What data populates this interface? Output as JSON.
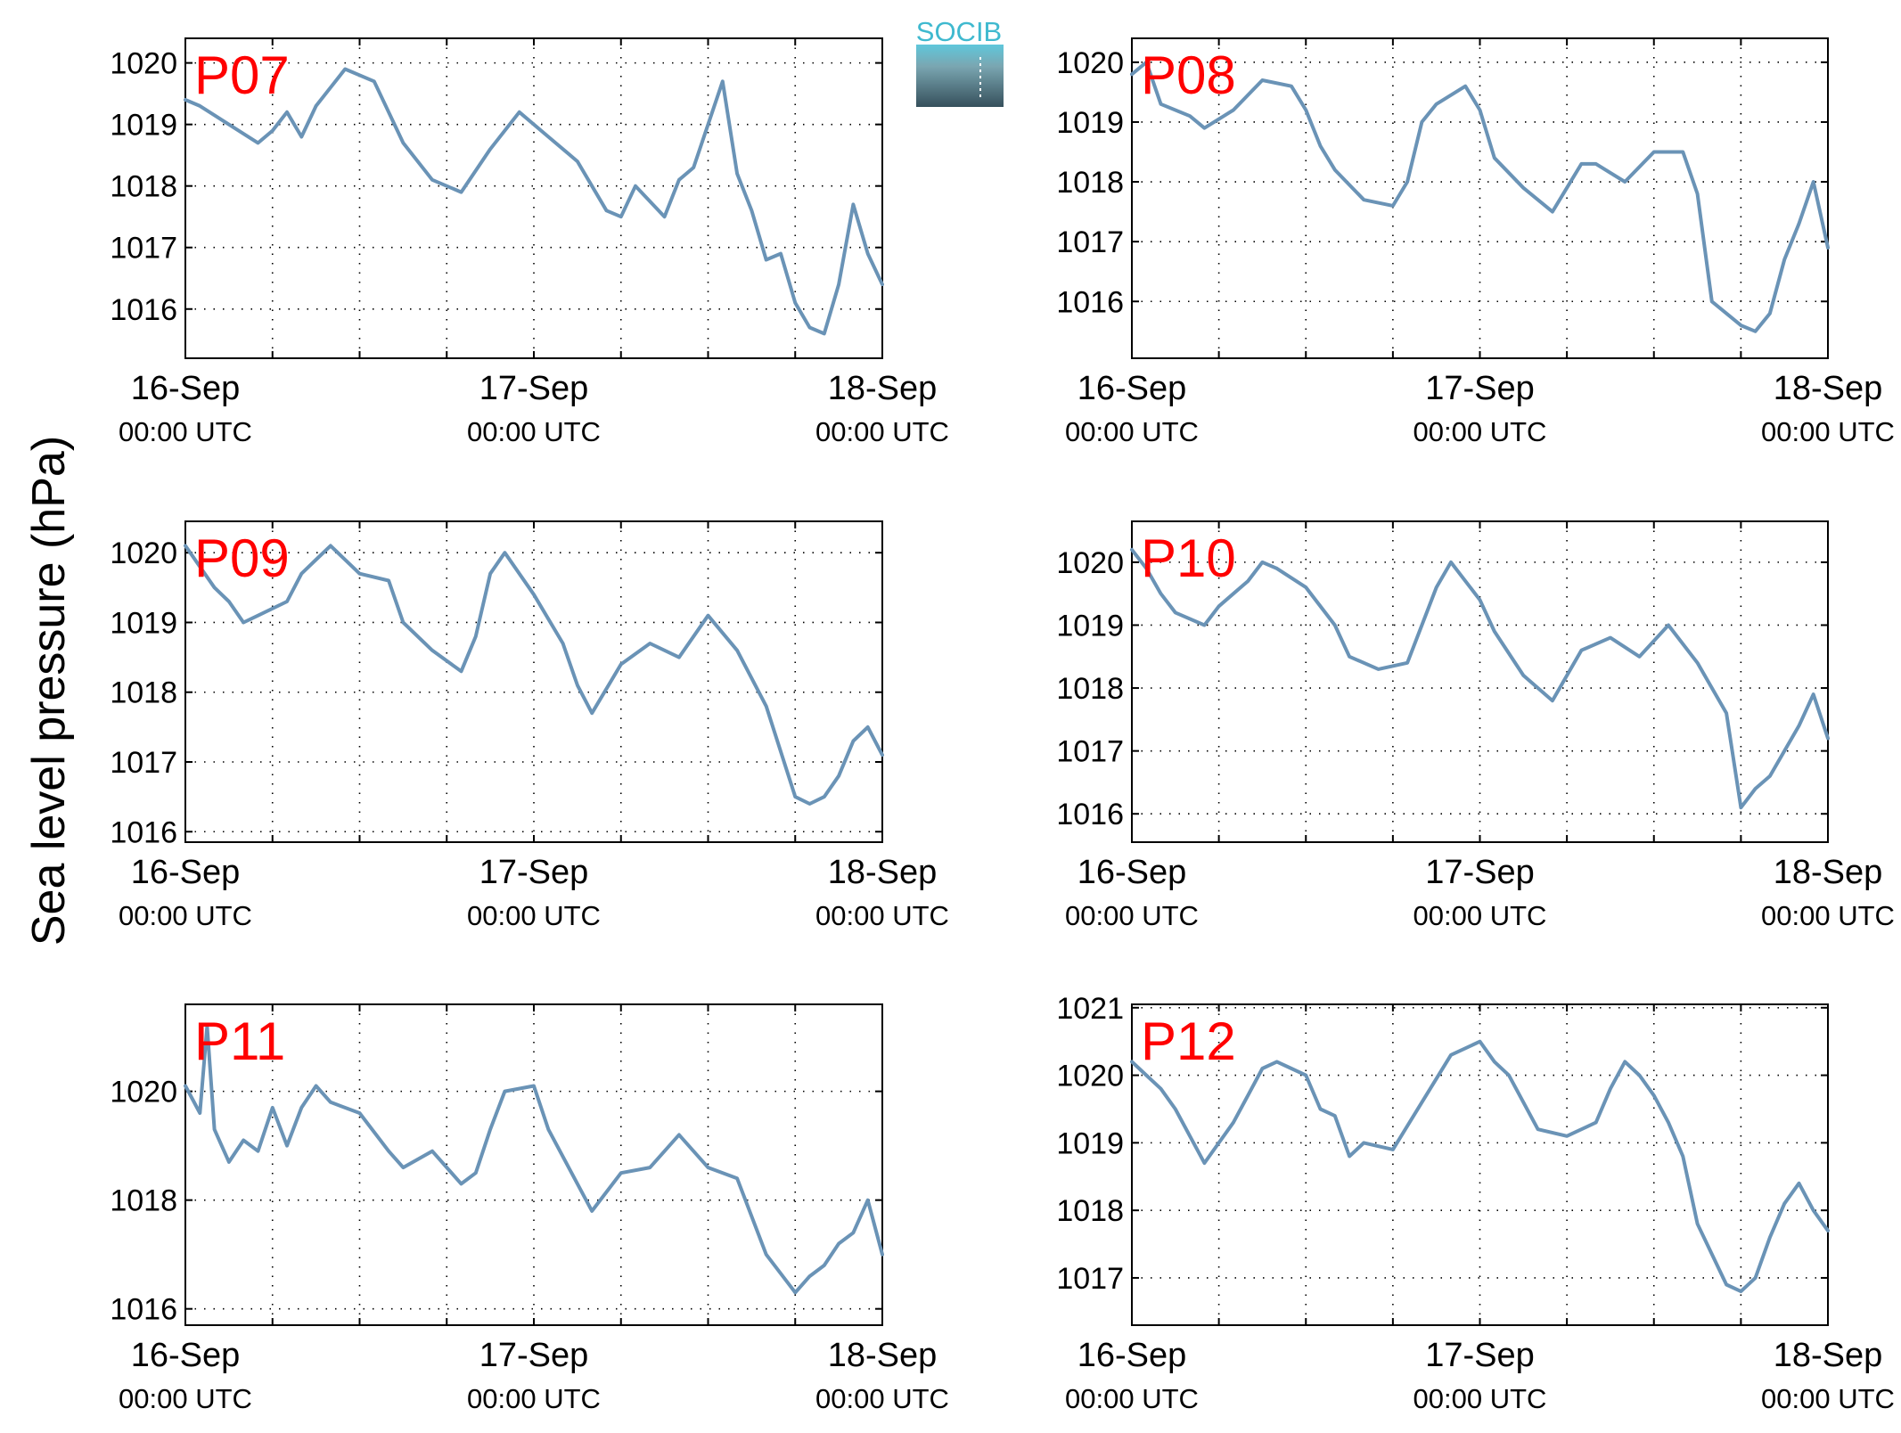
{
  "figure": {
    "ylabel": "Sea level pressure (hPa)",
    "logo_text": "SOCIB",
    "x_tick_dates": [
      "16-Sep",
      "17-Sep",
      "18-Sep"
    ],
    "x_tick_times": [
      "00:00 UTC",
      "00:00 UTC",
      "00:00 UTC"
    ],
    "line_color": "#6a93b6",
    "title_color": "#ff0000"
  },
  "chart_data": [
    {
      "type": "line",
      "title": "P07",
      "x_range": [
        "2015-09-16T00:00",
        "2015-09-18T00:00"
      ],
      "ylim": [
        1015.2,
        1020.4
      ],
      "yticks": [
        1016,
        1017,
        1018,
        1019,
        1020
      ],
      "grid": true,
      "series": [
        {
          "x": [
            "2015-09-16T00:00",
            "2015-09-16T01:00",
            "2015-09-16T03:00",
            "2015-09-16T05:00",
            "2015-09-16T06:00",
            "2015-09-16T07:00",
            "2015-09-16T08:00",
            "2015-09-16T09:00",
            "2015-09-16T10:00",
            "2015-09-16T11:00",
            "2015-09-16T13:00",
            "2015-09-16T14:00",
            "2015-09-16T15:00",
            "2015-09-16T17:00",
            "2015-09-16T19:00",
            "2015-09-16T21:00",
            "2015-09-16T23:00",
            "2015-09-17T01:00",
            "2015-09-17T03:00",
            "2015-09-17T05:00",
            "2015-09-17T06:00",
            "2015-09-17T07:00",
            "2015-09-17T09:00",
            "2015-09-17T10:00",
            "2015-09-17T11:00",
            "2015-09-17T13:00",
            "2015-09-17T14:00",
            "2015-09-17T15:00",
            "2015-09-17T16:00",
            "2015-09-17T17:00",
            "2015-09-17T18:00",
            "2015-09-17T19:00",
            "2015-09-17T20:00",
            "2015-09-17T21:00",
            "2015-09-17T22:00",
            "2015-09-17T23:00",
            "2015-09-18T00:00"
          ],
          "y": [
            1019.4,
            1019.3,
            1019.0,
            1018.7,
            1018.9,
            1019.2,
            1018.8,
            1019.3,
            1019.6,
            1019.9,
            1019.7,
            1019.2,
            1018.7,
            1018.1,
            1017.9,
            1018.6,
            1019.2,
            1018.8,
            1018.4,
            1017.6,
            1017.5,
            1018.0,
            1017.5,
            1018.1,
            1018.3,
            1019.7,
            1018.2,
            1017.6,
            1016.8,
            1016.9,
            1016.1,
            1015.7,
            1015.6,
            1016.4,
            1017.7,
            1016.9,
            1016.4
          ]
        }
      ]
    },
    {
      "type": "line",
      "title": "P08",
      "x_range": [
        "2015-09-16T00:00",
        "2015-09-18T00:00"
      ],
      "ylim": [
        1015.05,
        1020.4
      ],
      "yticks": [
        1016,
        1017,
        1018,
        1019,
        1020
      ],
      "grid": true,
      "series": [
        {
          "x": [
            "2015-09-16T00:00",
            "2015-09-16T01:00",
            "2015-09-16T02:00",
            "2015-09-16T04:00",
            "2015-09-16T05:00",
            "2015-09-16T07:00",
            "2015-09-16T09:00",
            "2015-09-16T11:00",
            "2015-09-16T12:00",
            "2015-09-16T13:00",
            "2015-09-16T14:00",
            "2015-09-16T16:00",
            "2015-09-16T18:00",
            "2015-09-16T19:00",
            "2015-09-16T20:00",
            "2015-09-16T21:00",
            "2015-09-16T23:00",
            "2015-09-17T00:00",
            "2015-09-17T01:00",
            "2015-09-17T03:00",
            "2015-09-17T05:00",
            "2015-09-17T06:00",
            "2015-09-17T07:00",
            "2015-09-17T08:00",
            "2015-09-17T10:00",
            "2015-09-17T12:00",
            "2015-09-17T14:00",
            "2015-09-17T15:00",
            "2015-09-17T16:00",
            "2015-09-17T17:00",
            "2015-09-17T18:00",
            "2015-09-17T19:00",
            "2015-09-17T20:00",
            "2015-09-17T21:00",
            "2015-09-17T22:00",
            "2015-09-17T23:00",
            "2015-09-18T00:00"
          ],
          "y": [
            1019.8,
            1020.0,
            1019.3,
            1019.1,
            1018.9,
            1019.2,
            1019.7,
            1019.6,
            1019.2,
            1018.6,
            1018.2,
            1017.7,
            1017.6,
            1018.0,
            1019.0,
            1019.3,
            1019.6,
            1019.2,
            1018.4,
            1017.9,
            1017.5,
            1017.9,
            1018.3,
            1018.3,
            1018.0,
            1018.5,
            1018.5,
            1017.8,
            1016.0,
            1015.8,
            1015.6,
            1015.5,
            1015.8,
            1016.7,
            1017.3,
            1018.0,
            1016.9
          ]
        }
      ]
    },
    {
      "type": "line",
      "title": "P09",
      "x_range": [
        "2015-09-16T00:00",
        "2015-09-18T00:00"
      ],
      "ylim": [
        1015.85,
        1020.45
      ],
      "yticks": [
        1016,
        1017,
        1018,
        1019,
        1020
      ],
      "grid": true,
      "series": [
        {
          "x": [
            "2015-09-16T00:00",
            "2015-09-16T01:00",
            "2015-09-16T02:00",
            "2015-09-16T03:00",
            "2015-09-16T04:00",
            "2015-09-16T05:00",
            "2015-09-16T07:00",
            "2015-09-16T08:00",
            "2015-09-16T09:00",
            "2015-09-16T10:00",
            "2015-09-16T12:00",
            "2015-09-16T14:00",
            "2015-09-16T15:00",
            "2015-09-16T17:00",
            "2015-09-16T19:00",
            "2015-09-16T20:00",
            "2015-09-16T21:00",
            "2015-09-16T22:00",
            "2015-09-17T00:00",
            "2015-09-17T02:00",
            "2015-09-17T03:00",
            "2015-09-17T04:00",
            "2015-09-17T06:00",
            "2015-09-17T08:00",
            "2015-09-17T10:00",
            "2015-09-17T12:00",
            "2015-09-17T14:00",
            "2015-09-17T16:00",
            "2015-09-17T18:00",
            "2015-09-17T19:00",
            "2015-09-17T20:00",
            "2015-09-17T21:00",
            "2015-09-17T22:00",
            "2015-09-17T23:00",
            "2015-09-18T00:00"
          ],
          "y": [
            1020.1,
            1019.8,
            1019.5,
            1019.3,
            1019.0,
            1019.1,
            1019.3,
            1019.7,
            1019.9,
            1020.1,
            1019.7,
            1019.6,
            1019.0,
            1018.6,
            1018.3,
            1018.8,
            1019.7,
            1020.0,
            1019.4,
            1018.7,
            1018.1,
            1017.7,
            1018.4,
            1018.7,
            1018.5,
            1019.1,
            1018.6,
            1017.8,
            1016.5,
            1016.4,
            1016.5,
            1016.8,
            1017.3,
            1017.5,
            1017.1
          ]
        }
      ]
    },
    {
      "type": "line",
      "title": "P10",
      "x_range": [
        "2015-09-16T00:00",
        "2015-09-18T00:00"
      ],
      "ylim": [
        1015.55,
        1020.65
      ],
      "yticks": [
        1016,
        1017,
        1018,
        1019,
        1020
      ],
      "grid": true,
      "series": [
        {
          "x": [
            "2015-09-16T00:00",
            "2015-09-16T01:00",
            "2015-09-16T02:00",
            "2015-09-16T03:00",
            "2015-09-16T05:00",
            "2015-09-16T06:00",
            "2015-09-16T07:00",
            "2015-09-16T08:00",
            "2015-09-16T09:00",
            "2015-09-16T10:00",
            "2015-09-16T12:00",
            "2015-09-16T14:00",
            "2015-09-16T15:00",
            "2015-09-16T17:00",
            "2015-09-16T19:00",
            "2015-09-16T20:00",
            "2015-09-16T21:00",
            "2015-09-16T22:00",
            "2015-09-17T00:00",
            "2015-09-17T01:00",
            "2015-09-17T03:00",
            "2015-09-17T05:00",
            "2015-09-17T07:00",
            "2015-09-17T09:00",
            "2015-09-17T11:00",
            "2015-09-17T13:00",
            "2015-09-17T15:00",
            "2015-09-17T17:00",
            "2015-09-17T18:00",
            "2015-09-17T19:00",
            "2015-09-17T20:00",
            "2015-09-17T21:00",
            "2015-09-17T22:00",
            "2015-09-17T23:00",
            "2015-09-18T00:00"
          ],
          "y": [
            1020.2,
            1019.9,
            1019.5,
            1019.2,
            1019.0,
            1019.3,
            1019.5,
            1019.7,
            1020.0,
            1019.9,
            1019.6,
            1019.0,
            1018.5,
            1018.3,
            1018.4,
            1019.0,
            1019.6,
            1020.0,
            1019.4,
            1018.9,
            1018.2,
            1017.8,
            1018.6,
            1018.8,
            1018.5,
            1019.0,
            1018.4,
            1017.6,
            1016.1,
            1016.4,
            1016.6,
            1017.0,
            1017.4,
            1017.9,
            1017.2
          ]
        }
      ]
    },
    {
      "type": "line",
      "title": "P11",
      "x_range": [
        "2015-09-16T00:00",
        "2015-09-18T00:00"
      ],
      "ylim": [
        1015.7,
        1021.6
      ],
      "yticks": [
        1016,
        1018,
        1020
      ],
      "grid": true,
      "series": [
        {
          "x": [
            "2015-09-16T00:00",
            "2015-09-16T01:00",
            "2015-09-16T01:30",
            "2015-09-16T02:00",
            "2015-09-16T02:30",
            "2015-09-16T03:00",
            "2015-09-16T04:00",
            "2015-09-16T05:00",
            "2015-09-16T06:00",
            "2015-09-16T07:00",
            "2015-09-16T08:00",
            "2015-09-16T09:00",
            "2015-09-16T10:00",
            "2015-09-16T12:00",
            "2015-09-16T14:00",
            "2015-09-16T15:00",
            "2015-09-16T17:00",
            "2015-09-16T19:00",
            "2015-09-16T20:00",
            "2015-09-16T21:00",
            "2015-09-16T22:00",
            "2015-09-17T00:00",
            "2015-09-17T01:00",
            "2015-09-17T03:00",
            "2015-09-17T04:00",
            "2015-09-17T06:00",
            "2015-09-17T08:00",
            "2015-09-17T10:00",
            "2015-09-17T12:00",
            "2015-09-17T14:00",
            "2015-09-17T16:00",
            "2015-09-17T18:00",
            "2015-09-17T19:00",
            "2015-09-17T20:00",
            "2015-09-17T21:00",
            "2015-09-17T22:00",
            "2015-09-17T23:00",
            "2015-09-18T00:00"
          ],
          "y": [
            1020.1,
            1019.6,
            1021.2,
            1019.3,
            1019.0,
            1018.7,
            1019.1,
            1018.9,
            1019.7,
            1019.0,
            1019.7,
            1020.1,
            1019.8,
            1019.6,
            1018.9,
            1018.6,
            1018.9,
            1018.3,
            1018.5,
            1019.3,
            1020.0,
            1020.1,
            1019.3,
            1018.3,
            1017.8,
            1018.5,
            1018.6,
            1019.2,
            1018.6,
            1018.4,
            1017.0,
            1016.3,
            1016.6,
            1016.8,
            1017.2,
            1017.4,
            1018.0,
            1017.0
          ]
        }
      ]
    },
    {
      "type": "line",
      "title": "P12",
      "x_range": [
        "2015-09-16T00:00",
        "2015-09-18T00:00"
      ],
      "ylim": [
        1016.3,
        1021.05
      ],
      "yticks": [
        1017,
        1018,
        1019,
        1020,
        1021
      ],
      "grid": true,
      "series": [
        {
          "x": [
            "2015-09-16T00:00",
            "2015-09-16T01:00",
            "2015-09-16T02:00",
            "2015-09-16T03:00",
            "2015-09-16T04:00",
            "2015-09-16T05:00",
            "2015-09-16T06:00",
            "2015-09-16T07:00",
            "2015-09-16T08:00",
            "2015-09-16T09:00",
            "2015-09-16T10:00",
            "2015-09-16T11:00",
            "2015-09-16T12:00",
            "2015-09-16T13:00",
            "2015-09-16T14:00",
            "2015-09-16T15:00",
            "2015-09-16T16:00",
            "2015-09-16T18:00",
            "2015-09-16T20:00",
            "2015-09-16T22:00",
            "2015-09-17T00:00",
            "2015-09-17T01:00",
            "2015-09-17T02:00",
            "2015-09-17T04:00",
            "2015-09-17T06:00",
            "2015-09-17T08:00",
            "2015-09-17T09:00",
            "2015-09-17T10:00",
            "2015-09-17T11:00",
            "2015-09-17T12:00",
            "2015-09-17T13:00",
            "2015-09-17T14:00",
            "2015-09-17T15:00",
            "2015-09-17T17:00",
            "2015-09-17T18:00",
            "2015-09-17T19:00",
            "2015-09-17T20:00",
            "2015-09-17T21:00",
            "2015-09-17T22:00",
            "2015-09-17T23:00",
            "2015-09-18T00:00"
          ],
          "y": [
            1020.2,
            1020.0,
            1019.8,
            1019.5,
            1019.1,
            1018.7,
            1019.0,
            1019.3,
            1019.7,
            1020.1,
            1020.2,
            1020.1,
            1020.0,
            1019.5,
            1019.4,
            1018.8,
            1019.0,
            1018.9,
            1019.6,
            1020.3,
            1020.5,
            1020.2,
            1020.0,
            1019.2,
            1019.1,
            1019.3,
            1019.8,
            1020.2,
            1020.0,
            1019.7,
            1019.3,
            1018.8,
            1017.8,
            1016.9,
            1016.8,
            1017.0,
            1017.6,
            1018.1,
            1018.4,
            1018.0,
            1017.7
          ]
        }
      ]
    }
  ]
}
